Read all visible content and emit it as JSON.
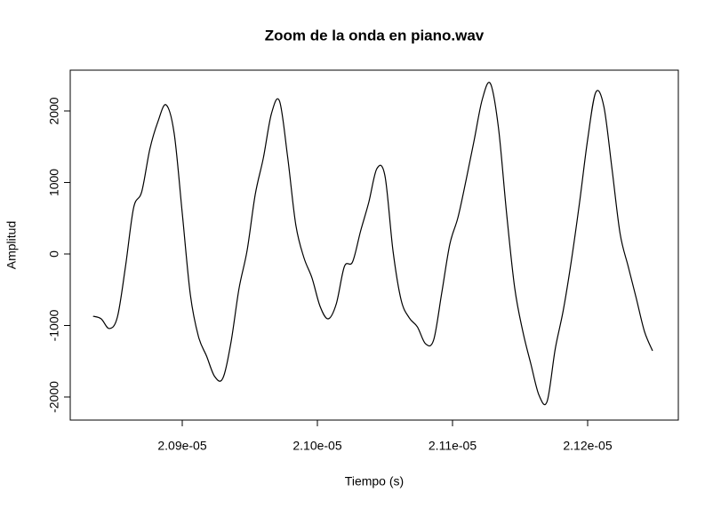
{
  "chart_data": {
    "type": "line",
    "title": "Zoom de la onda en piano.wav",
    "x_label": "Tiempo (s)",
    "y_label": "Amplitud",
    "x": [
      2.0834e-05,
      2.084e-05,
      2.0846e-05,
      2.0852e-05,
      2.0858e-05,
      2.0864e-05,
      2.087e-05,
      2.0876e-05,
      2.0882e-05,
      2.0888e-05,
      2.0894e-05,
      2.09e-05,
      2.0906e-05,
      2.0912e-05,
      2.0918e-05,
      2.0924e-05,
      2.093e-05,
      2.0936e-05,
      2.0942e-05,
      2.0948e-05,
      2.0954e-05,
      2.096e-05,
      2.0966e-05,
      2.0972e-05,
      2.0978e-05,
      2.0984e-05,
      2.099e-05,
      2.0996e-05,
      2.1002e-05,
      2.1008e-05,
      2.1014e-05,
      2.102e-05,
      2.1026e-05,
      2.1032e-05,
      2.1038e-05,
      2.1044e-05,
      2.105e-05,
      2.1056e-05,
      2.1062e-05,
      2.1068e-05,
      2.1074e-05,
      2.108e-05,
      2.1086e-05,
      2.1092e-05,
      2.1098e-05,
      2.1104e-05,
      2.111e-05,
      2.1116e-05,
      2.1122e-05,
      2.1128e-05,
      2.1134e-05,
      2.114e-05,
      2.1146e-05,
      2.1152e-05,
      2.1158e-05,
      2.1164e-05,
      2.117e-05,
      2.1176e-05,
      2.1182e-05,
      2.1188e-05,
      2.1194e-05,
      2.12e-05,
      2.1206e-05,
      2.1212e-05,
      2.1218e-05,
      2.1224e-05,
      2.123e-05,
      2.1236e-05,
      2.1242e-05,
      2.1248e-05
    ],
    "series": [
      {
        "color": "#000000",
        "values": [
          -870,
          -907,
          -1043,
          -882,
          -174,
          646,
          870,
          1466,
          1851,
          2087,
          1689,
          571,
          -571,
          -1155,
          -1429,
          -1714,
          -1739,
          -1242,
          -484,
          50,
          832,
          1342,
          1963,
          2137,
          1354,
          410,
          -50,
          -335,
          -733,
          -907,
          -696,
          -174,
          -112,
          323,
          720,
          1193,
          1093,
          37,
          -646,
          -894,
          -1019,
          -1255,
          -1205,
          -547,
          137,
          509,
          1031,
          1590,
          2161,
          2385,
          1764,
          571,
          -472,
          -1081,
          -1540,
          -1975,
          -2062,
          -1329,
          -783,
          -87,
          720,
          1602,
          2261,
          2062,
          1193,
          286,
          -174,
          -621,
          -1081,
          -1354
        ]
      }
    ],
    "xlim": [
      2.08171e-05,
      2.12671e-05
    ],
    "xticks": [
      {
        "value": 2.09e-05,
        "label": "2.09e-05"
      },
      {
        "value": 2.1e-05,
        "label": "2.10e-05"
      },
      {
        "value": 2.11e-05,
        "label": "2.11e-05"
      },
      {
        "value": 2.12e-05,
        "label": "2.12e-05"
      }
    ],
    "ylim": [
      -2323,
      2571
    ],
    "yticks": [
      -2000,
      -1000,
      0,
      1000,
      2000
    ],
    "grid": false
  }
}
